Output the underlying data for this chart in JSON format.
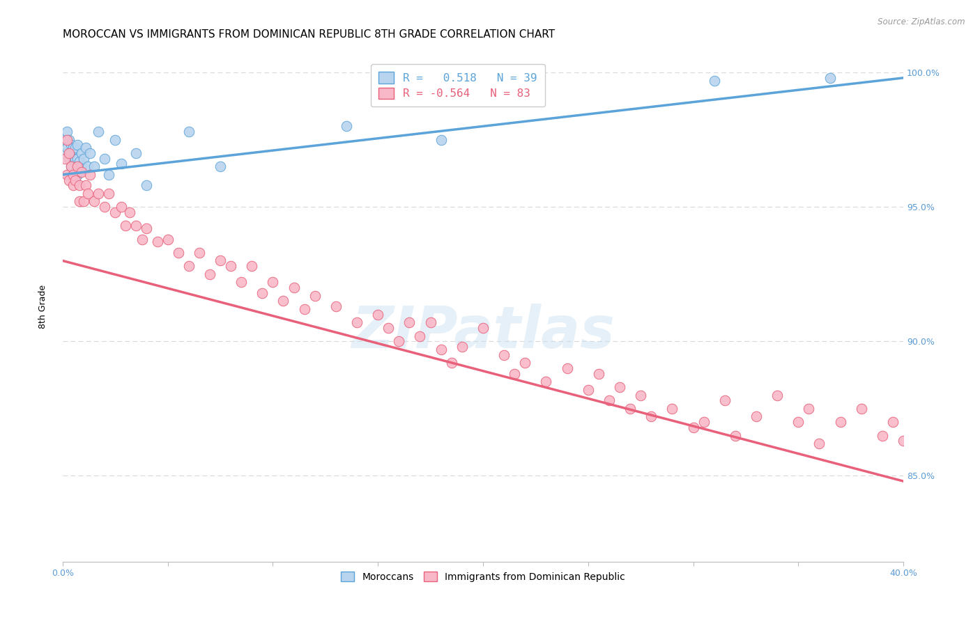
{
  "title": "MOROCCAN VS IMMIGRANTS FROM DOMINICAN REPUBLIC 8TH GRADE CORRELATION CHART",
  "source": "Source: ZipAtlas.com",
  "ylabel": "8th Grade",
  "ylabel_right_ticks": [
    "100.0%",
    "95.0%",
    "90.0%",
    "85.0%"
  ],
  "ylabel_right_vals": [
    1.0,
    0.95,
    0.9,
    0.85
  ],
  "xmin": 0.0,
  "xmax": 0.4,
  "ymin": 0.818,
  "ymax": 1.008,
  "legend_blue_label": "R =   0.518   N = 39",
  "legend_pink_label": "R = -0.564   N = 83",
  "moroccan_color": "#b8d4ee",
  "dominican_color": "#f9b8c8",
  "blue_line_color": "#5ba3d9",
  "pink_line_color": "#e8607a",
  "watermark": "ZIPatlas",
  "moroccan_x": [
    0.001,
    0.001,
    0.002,
    0.002,
    0.003,
    0.003,
    0.004,
    0.004,
    0.004,
    0.005,
    0.005,
    0.006,
    0.006,
    0.006,
    0.007,
    0.007,
    0.007,
    0.008,
    0.008,
    0.009,
    0.009,
    0.01,
    0.011,
    0.012,
    0.013,
    0.015,
    0.017,
    0.02,
    0.022,
    0.025,
    0.028,
    0.035,
    0.04,
    0.06,
    0.075,
    0.135,
    0.18,
    0.31,
    0.365
  ],
  "moroccan_y": [
    0.97,
    0.975,
    0.972,
    0.978,
    0.968,
    0.975,
    0.965,
    0.97,
    0.973,
    0.968,
    0.972,
    0.963,
    0.968,
    0.972,
    0.962,
    0.968,
    0.973,
    0.963,
    0.967,
    0.965,
    0.97,
    0.968,
    0.972,
    0.965,
    0.97,
    0.965,
    0.978,
    0.968,
    0.962,
    0.975,
    0.966,
    0.97,
    0.958,
    0.978,
    0.965,
    0.98,
    0.975,
    0.997,
    0.998
  ],
  "dominican_x": [
    0.001,
    0.002,
    0.002,
    0.003,
    0.003,
    0.004,
    0.005,
    0.005,
    0.006,
    0.007,
    0.008,
    0.008,
    0.009,
    0.01,
    0.011,
    0.012,
    0.013,
    0.015,
    0.017,
    0.02,
    0.022,
    0.025,
    0.028,
    0.03,
    0.032,
    0.035,
    0.038,
    0.04,
    0.045,
    0.05,
    0.055,
    0.06,
    0.065,
    0.07,
    0.075,
    0.08,
    0.085,
    0.09,
    0.095,
    0.1,
    0.105,
    0.11,
    0.115,
    0.12,
    0.13,
    0.14,
    0.15,
    0.155,
    0.16,
    0.165,
    0.17,
    0.175,
    0.18,
    0.185,
    0.19,
    0.2,
    0.21,
    0.215,
    0.22,
    0.23,
    0.24,
    0.25,
    0.255,
    0.26,
    0.265,
    0.27,
    0.275,
    0.28,
    0.29,
    0.3,
    0.305,
    0.315,
    0.32,
    0.33,
    0.34,
    0.35,
    0.355,
    0.36,
    0.37,
    0.38,
    0.39,
    0.395,
    0.4
  ],
  "dominican_y": [
    0.968,
    0.975,
    0.962,
    0.97,
    0.96,
    0.965,
    0.962,
    0.958,
    0.96,
    0.965,
    0.958,
    0.952,
    0.963,
    0.952,
    0.958,
    0.955,
    0.962,
    0.952,
    0.955,
    0.95,
    0.955,
    0.948,
    0.95,
    0.943,
    0.948,
    0.943,
    0.938,
    0.942,
    0.937,
    0.938,
    0.933,
    0.928,
    0.933,
    0.925,
    0.93,
    0.928,
    0.922,
    0.928,
    0.918,
    0.922,
    0.915,
    0.92,
    0.912,
    0.917,
    0.913,
    0.907,
    0.91,
    0.905,
    0.9,
    0.907,
    0.902,
    0.907,
    0.897,
    0.892,
    0.898,
    0.905,
    0.895,
    0.888,
    0.892,
    0.885,
    0.89,
    0.882,
    0.888,
    0.878,
    0.883,
    0.875,
    0.88,
    0.872,
    0.875,
    0.868,
    0.87,
    0.878,
    0.865,
    0.872,
    0.88,
    0.87,
    0.875,
    0.862,
    0.87,
    0.875,
    0.865,
    0.87,
    0.863
  ],
  "blue_line_x": [
    0.0,
    0.4
  ],
  "blue_line_y": [
    0.962,
    0.998
  ],
  "pink_line_x": [
    0.0,
    0.4
  ],
  "pink_line_y": [
    0.93,
    0.848
  ],
  "background_color": "#ffffff",
  "grid_color": "#d8d8d8",
  "title_fontsize": 11,
  "axis_fontsize": 9,
  "legend_fontsize": 11.5
}
